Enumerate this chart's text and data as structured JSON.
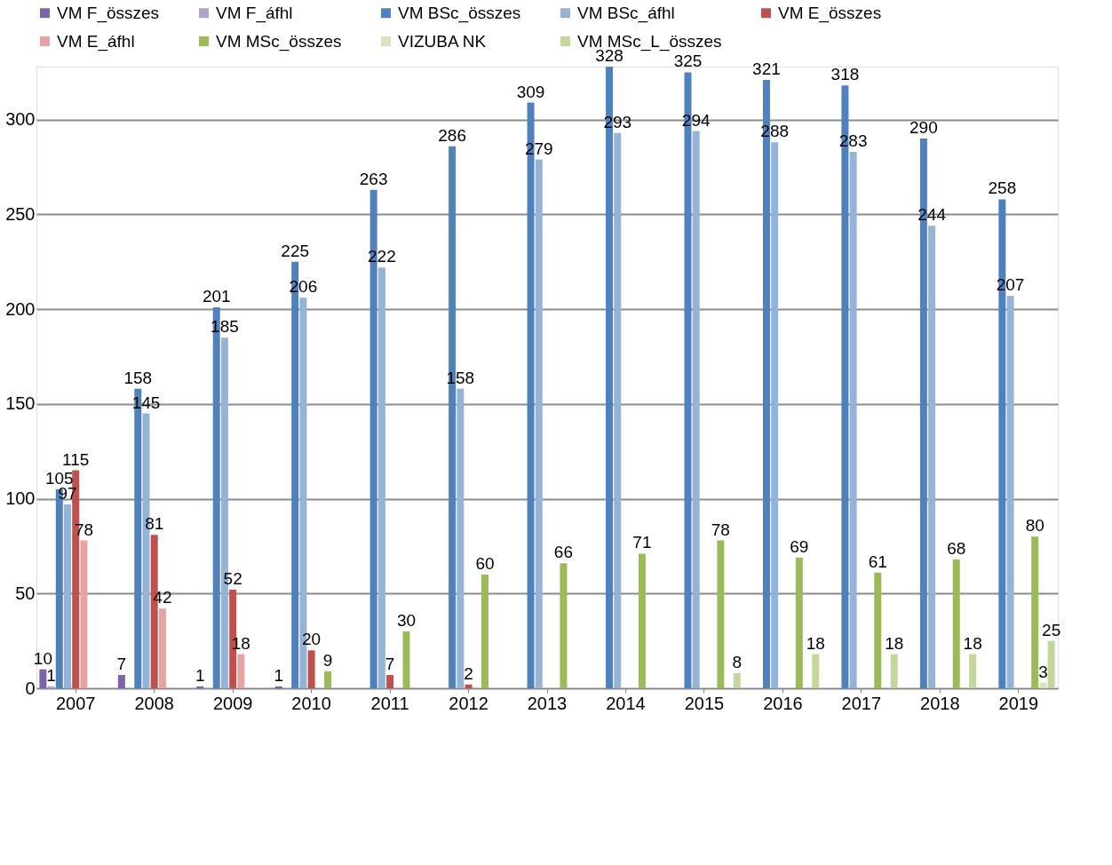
{
  "chart_data": {
    "type": "bar",
    "categories": [
      "2007",
      "2008",
      "2009",
      "2010",
      "2011",
      "2012",
      "2013",
      "2014",
      "2015",
      "2016",
      "2017",
      "2018",
      "2019"
    ],
    "series": [
      {
        "name": "VM F_összes",
        "color": "#7f63a8",
        "values": [
          10,
          7,
          1,
          1,
          null,
          null,
          null,
          null,
          null,
          null,
          null,
          null,
          null
        ]
      },
      {
        "name": "VM F_áfhl",
        "color": "#b3a2c7",
        "values": [
          1,
          null,
          null,
          null,
          null,
          null,
          null,
          null,
          null,
          null,
          null,
          null,
          null
        ]
      },
      {
        "name": "VM BSc_összes",
        "color": "#4f81bd",
        "values": [
          105,
          158,
          201,
          225,
          263,
          286,
          309,
          328,
          325,
          321,
          318,
          290,
          258
        ]
      },
      {
        "name": "VM BSc_áfhl",
        "color": "#95b3d7",
        "values": [
          97,
          145,
          185,
          206,
          222,
          158,
          279,
          293,
          294,
          288,
          283,
          244,
          207
        ]
      },
      {
        "name": "VM E_összes",
        "color": "#c0504d",
        "values": [
          115,
          81,
          52,
          20,
          7,
          2,
          null,
          null,
          null,
          null,
          null,
          null,
          null
        ]
      },
      {
        "name": "VM E_áfhl",
        "color": "#e6a3a1",
        "values": [
          78,
          42,
          18,
          null,
          null,
          null,
          null,
          null,
          null,
          null,
          null,
          null,
          null
        ]
      },
      {
        "name": "VM MSc_összes",
        "color": "#9bbb59",
        "values": [
          null,
          null,
          null,
          9,
          30,
          60,
          66,
          71,
          78,
          69,
          61,
          68,
          80
        ]
      },
      {
        "name": "VIZUBA NK",
        "color": "#d7e4bd",
        "values": [
          null,
          null,
          null,
          null,
          null,
          null,
          null,
          null,
          null,
          null,
          null,
          null,
          3
        ]
      },
      {
        "name": "VM MSc_L_összes",
        "color": "#c3d69b",
        "values": [
          null,
          null,
          null,
          null,
          null,
          null,
          null,
          null,
          8,
          18,
          18,
          18,
          25
        ]
      }
    ],
    "ylim": [
      0,
      328
    ],
    "yticks": [
      0,
      50,
      100,
      150,
      200,
      250,
      300
    ],
    "grid": "y",
    "legend": "top",
    "data_labels": true
  }
}
